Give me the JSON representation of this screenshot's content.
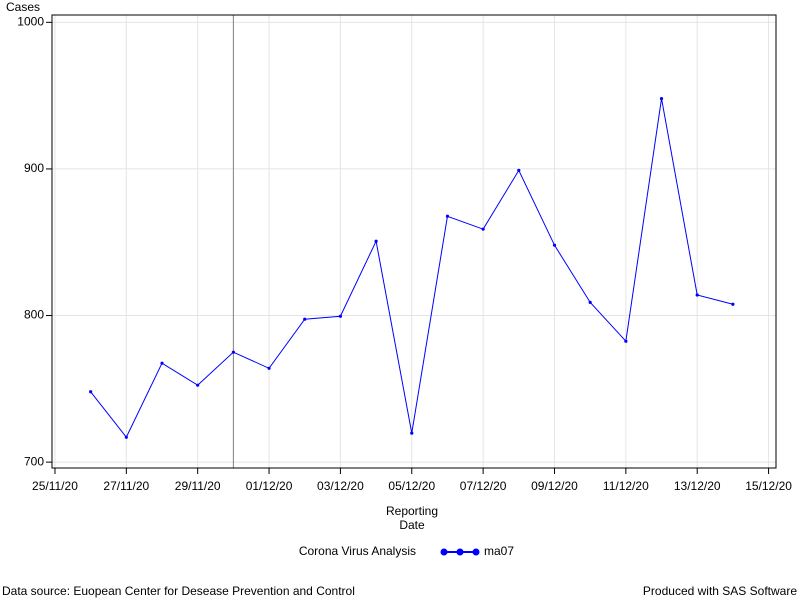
{
  "chart_data": {
    "type": "line",
    "y_label": "Cases",
    "x_label_lines": [
      "Reporting",
      "Date"
    ],
    "x": [
      "2020-11-26",
      "2020-11-27",
      "2020-11-28",
      "2020-11-29",
      "2020-11-30",
      "2020-12-01",
      "2020-12-02",
      "2020-12-03",
      "2020-12-04",
      "2020-12-05",
      "2020-12-06",
      "2020-12-07",
      "2020-12-08",
      "2020-12-09",
      "2020-12-10",
      "2020-12-11",
      "2020-12-12",
      "2020-12-13",
      "2020-12-14"
    ],
    "series": [
      {
        "name": "ma07",
        "color": "#0000ff",
        "values": [
          748,
          717,
          767.5,
          752.5,
          775,
          764,
          797.5,
          799.5,
          850.7,
          719.8,
          867.7,
          858.9,
          899,
          848,
          809,
          782.5,
          948,
          814,
          807.7
        ]
      }
    ],
    "legend_title": "Corona Virus Analysis",
    "xlim": [
      "2020-11-24T22:00:00Z",
      "2020-12-15T05:00:00Z"
    ],
    "xticks": [
      {
        "value": "2020-11-25",
        "label": "25/11/20"
      },
      {
        "value": "2020-11-27",
        "label": "27/11/20"
      },
      {
        "value": "2020-11-29",
        "label": "29/11/20"
      },
      {
        "value": "2020-12-01",
        "label": "01/12/20"
      },
      {
        "value": "2020-12-03",
        "label": "03/12/20"
      },
      {
        "value": "2020-12-05",
        "label": "05/12/20"
      },
      {
        "value": "2020-12-07",
        "label": "07/12/20"
      },
      {
        "value": "2020-12-09",
        "label": "09/12/20"
      },
      {
        "value": "2020-12-11",
        "label": "11/12/20"
      },
      {
        "value": "2020-12-13",
        "label": "13/12/20"
      },
      {
        "value": "2020-12-15",
        "label": "15/12/20"
      }
    ],
    "ylim": [
      696,
      1005
    ],
    "yticks": [
      700,
      800,
      900,
      1000
    ],
    "reference_line_x": "2020-11-30",
    "grid": true,
    "footnote_left": "Data source: Euopean Center for Desease Prevention and Control",
    "footnote_right": "Produced with SAS Software"
  }
}
